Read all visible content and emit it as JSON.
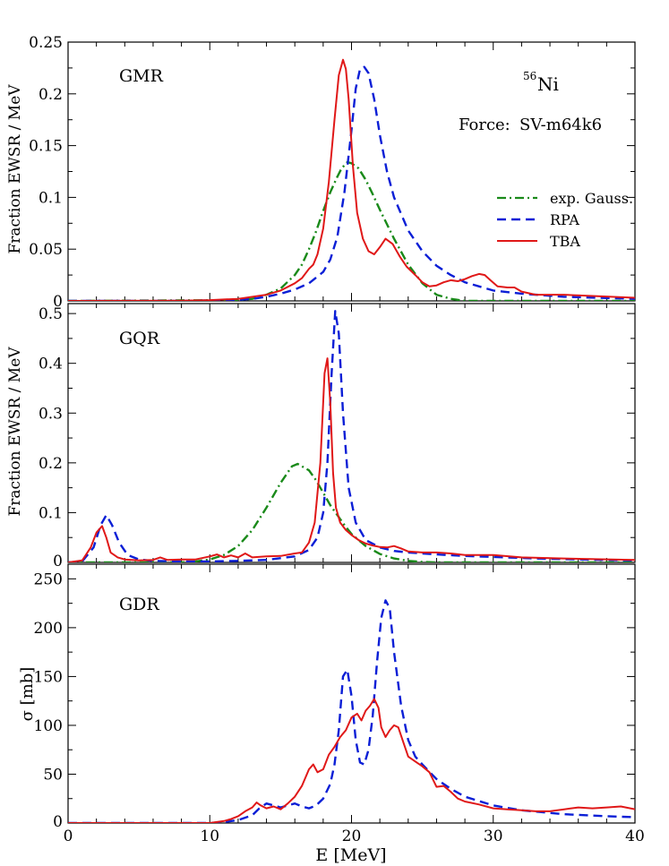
{
  "figure": {
    "xlabel": "E [MeV]",
    "xlim": [
      0,
      40
    ],
    "xticks": [
      0,
      10,
      20,
      30,
      40
    ],
    "xticks_minor_step": 2,
    "legend": [
      {
        "label": "exp. Gauss.",
        "style": "dashdot",
        "color": "#1a8a1a"
      },
      {
        "label": "RPA",
        "style": "dashed",
        "color": "#0b1fd6"
      },
      {
        "label": "TBA",
        "style": "solid",
        "color": "#e01818"
      }
    ],
    "annotations": {
      "nucleus_mass": "56",
      "nucleus_symbol": "Ni",
      "force_label": "Force:",
      "force_name": "SV-m64k6"
    }
  },
  "chart_data": [
    {
      "type": "line",
      "title": "GMR",
      "xlabel": "E [MeV]",
      "ylabel": "Fraction EWSR / MeV",
      "ylim": [
        0,
        0.25
      ],
      "yticks": [
        0,
        0.05,
        0.1,
        0.15,
        0.2,
        0.25
      ],
      "ytick_labels": [
        "0",
        "0.05",
        "0.1",
        "0.15",
        "0.2",
        "0.25"
      ],
      "yminor": 0.025,
      "series": [
        {
          "name": "exp. Gauss.",
          "x": [
            0,
            12,
            13,
            14,
            15,
            16,
            16.5,
            17,
            17.5,
            18,
            18.5,
            19,
            19.3,
            19.7,
            20,
            20.5,
            21,
            21.5,
            22,
            23,
            24,
            25,
            26,
            27,
            28,
            40
          ],
          "values": [
            0,
            0.0008,
            0.002,
            0.006,
            0.012,
            0.025,
            0.035,
            0.05,
            0.067,
            0.087,
            0.105,
            0.12,
            0.128,
            0.134,
            0.133,
            0.128,
            0.117,
            0.103,
            0.088,
            0.06,
            0.035,
            0.017,
            0.006,
            0.002,
            0,
            0
          ]
        },
        {
          "name": "RPA",
          "x": [
            0,
            8,
            10,
            12,
            13,
            14,
            15,
            16,
            17,
            18,
            18.5,
            19,
            19.5,
            20,
            20.3,
            20.6,
            20.9,
            21.2,
            21.6,
            22,
            22.5,
            23,
            24,
            25,
            26,
            27,
            28,
            30,
            32,
            35,
            40
          ],
          "values": [
            0,
            0,
            0.0005,
            0.001,
            0.002,
            0.004,
            0.007,
            0.011,
            0.017,
            0.028,
            0.04,
            0.062,
            0.105,
            0.165,
            0.205,
            0.224,
            0.226,
            0.22,
            0.195,
            0.16,
            0.125,
            0.1,
            0.068,
            0.048,
            0.034,
            0.025,
            0.018,
            0.01,
            0.007,
            0.004,
            0.002
          ]
        },
        {
          "name": "TBA",
          "x": [
            0,
            8,
            10,
            12,
            14,
            15,
            16,
            16.5,
            17,
            17.3,
            17.6,
            18,
            18.4,
            18.8,
            19.1,
            19.4,
            19.6,
            19.8,
            20.1,
            20.4,
            20.8,
            21.2,
            21.6,
            22,
            22.4,
            22.9,
            23.4,
            23.9,
            24.5,
            25,
            25.5,
            26,
            26.5,
            27,
            27.5,
            28,
            28.5,
            29,
            29.4,
            29.8,
            30.3,
            31,
            31.5,
            32,
            33,
            35,
            40
          ],
          "values": [
            0,
            0.0003,
            0.0008,
            0.002,
            0.006,
            0.01,
            0.017,
            0.022,
            0.031,
            0.035,
            0.045,
            0.07,
            0.115,
            0.175,
            0.218,
            0.233,
            0.224,
            0.195,
            0.13,
            0.085,
            0.06,
            0.048,
            0.045,
            0.052,
            0.06,
            0.055,
            0.043,
            0.033,
            0.025,
            0.018,
            0.014,
            0.015,
            0.018,
            0.02,
            0.019,
            0.021,
            0.024,
            0.026,
            0.025,
            0.02,
            0.014,
            0.013,
            0.013,
            0.009,
            0.006,
            0.006,
            0.003
          ]
        }
      ]
    },
    {
      "type": "line",
      "title": "GQR",
      "xlabel": "E [MeV]",
      "ylabel": "Fraction EWSR / MeV",
      "ylim": [
        0,
        0.52
      ],
      "yticks": [
        0,
        0.1,
        0.2,
        0.3,
        0.4,
        0.5
      ],
      "ytick_labels": [
        "0",
        "0.1",
        "0.2",
        "0.3",
        "0.4",
        "0.5"
      ],
      "yminor": 0.05,
      "series": [
        {
          "name": "exp. Gauss.",
          "x": [
            0,
            8,
            9,
            10,
            11,
            12,
            13,
            14,
            15,
            15.8,
            16.2,
            17,
            17.5,
            18,
            18.5,
            19,
            19.5,
            20,
            21,
            22,
            23,
            24,
            25,
            26,
            27,
            40
          ],
          "values": [
            0,
            0,
            0.002,
            0.006,
            0.015,
            0.033,
            0.065,
            0.11,
            0.16,
            0.193,
            0.198,
            0.185,
            0.165,
            0.14,
            0.115,
            0.095,
            0.075,
            0.057,
            0.033,
            0.017,
            0.008,
            0.003,
            0.001,
            0,
            0,
            0
          ]
        },
        {
          "name": "RPA",
          "x": [
            0,
            1,
            1.8,
            2.3,
            2.7,
            3.1,
            3.6,
            4.2,
            5,
            6,
            8,
            10,
            12,
            14,
            16,
            17,
            17.6,
            18,
            18.3,
            18.6,
            18.85,
            19.1,
            19.4,
            19.8,
            20.3,
            21,
            22,
            23,
            24,
            26,
            28,
            30,
            33,
            36,
            40
          ],
          "values": [
            0,
            0.002,
            0.03,
            0.075,
            0.095,
            0.075,
            0.04,
            0.015,
            0.006,
            0.003,
            0.002,
            0.002,
            0.003,
            0.005,
            0.012,
            0.025,
            0.05,
            0.1,
            0.2,
            0.38,
            0.505,
            0.46,
            0.3,
            0.15,
            0.08,
            0.045,
            0.03,
            0.023,
            0.02,
            0.016,
            0.013,
            0.011,
            0.008,
            0.006,
            0.004
          ]
        },
        {
          "name": "TBA",
          "x": [
            0,
            1,
            1.6,
            2,
            2.4,
            2.7,
            3,
            3.5,
            4,
            5,
            6,
            6.5,
            7,
            8,
            9,
            10,
            10.5,
            11,
            11.5,
            12,
            12.5,
            13,
            14,
            15,
            16,
            16.5,
            17,
            17.4,
            17.8,
            18.1,
            18.3,
            18.5,
            18.7,
            18.9,
            19.2,
            19.6,
            20,
            20.5,
            21,
            21.5,
            22,
            22.5,
            23,
            23.5,
            24,
            25,
            26,
            27,
            28,
            30,
            32,
            35,
            40
          ],
          "values": [
            0,
            0.004,
            0.03,
            0.06,
            0.073,
            0.05,
            0.02,
            0.01,
            0.006,
            0.004,
            0.005,
            0.01,
            0.005,
            0.006,
            0.006,
            0.012,
            0.016,
            0.01,
            0.014,
            0.01,
            0.018,
            0.01,
            0.012,
            0.013,
            0.018,
            0.02,
            0.04,
            0.08,
            0.2,
            0.38,
            0.41,
            0.32,
            0.18,
            0.11,
            0.08,
            0.065,
            0.055,
            0.045,
            0.038,
            0.034,
            0.031,
            0.03,
            0.033,
            0.028,
            0.022,
            0.02,
            0.02,
            0.018,
            0.015,
            0.015,
            0.01,
            0.008,
            0.005
          ]
        }
      ]
    },
    {
      "type": "line",
      "title": "GDR",
      "xlabel": "E [MeV]",
      "ylabel": "σ [mb]",
      "ylim": [
        0,
        265
      ],
      "yticks": [
        0,
        50,
        100,
        150,
        200,
        250
      ],
      "ytick_labels": [
        "0",
        "50",
        "100",
        "150",
        "200",
        "250"
      ],
      "yminor": 25,
      "series": [
        {
          "name": "RPA",
          "x": [
            0,
            10,
            11,
            12,
            13,
            13.5,
            14,
            14.5,
            15,
            15.5,
            16,
            16.5,
            17,
            17.5,
            18,
            18.5,
            18.8,
            19.1,
            19.4,
            19.7,
            20,
            20.3,
            20.6,
            20.9,
            21.2,
            21.5,
            21.8,
            22.1,
            22.4,
            22.7,
            23,
            23.5,
            24,
            24.5,
            25,
            26,
            27,
            28,
            30,
            32,
            35,
            38,
            40
          ],
          "values": [
            0,
            0,
            1,
            3,
            8,
            15,
            20,
            18,
            16,
            18,
            20,
            17,
            15,
            18,
            25,
            40,
            60,
            95,
            150,
            157,
            130,
            85,
            62,
            60,
            75,
            110,
            165,
            210,
            228,
            220,
            175,
            120,
            85,
            68,
            60,
            45,
            35,
            27,
            18,
            13,
            9,
            7,
            6
          ]
        },
        {
          "name": "TBA",
          "x": [
            0,
            10,
            11,
            11.5,
            12,
            12.5,
            13,
            13.3,
            13.6,
            14,
            14.5,
            15,
            15.5,
            16,
            16.5,
            17,
            17.3,
            17.6,
            18,
            18.4,
            18.8,
            19.2,
            19.6,
            20,
            20.4,
            20.7,
            21,
            21.3,
            21.6,
            21.9,
            22.1,
            22.4,
            22.7,
            23,
            23.3,
            23.6,
            24,
            24.5,
            25,
            25.5,
            26,
            26.5,
            27,
            27.5,
            28,
            29,
            30,
            31,
            32,
            33,
            34,
            35,
            36,
            37,
            38,
            39,
            40
          ],
          "values": [
            0,
            0,
            2,
            4,
            7,
            12,
            16,
            21,
            18,
            15,
            17,
            14,
            20,
            27,
            38,
            55,
            60,
            52,
            55,
            70,
            78,
            88,
            95,
            108,
            112,
            105,
            115,
            120,
            127,
            118,
            98,
            88,
            95,
            100,
            98,
            85,
            68,
            63,
            58,
            52,
            37,
            38,
            32,
            25,
            22,
            19,
            15,
            14,
            13,
            12,
            12,
            14,
            16,
            15,
            16,
            17,
            14
          ]
        }
      ]
    }
  ]
}
